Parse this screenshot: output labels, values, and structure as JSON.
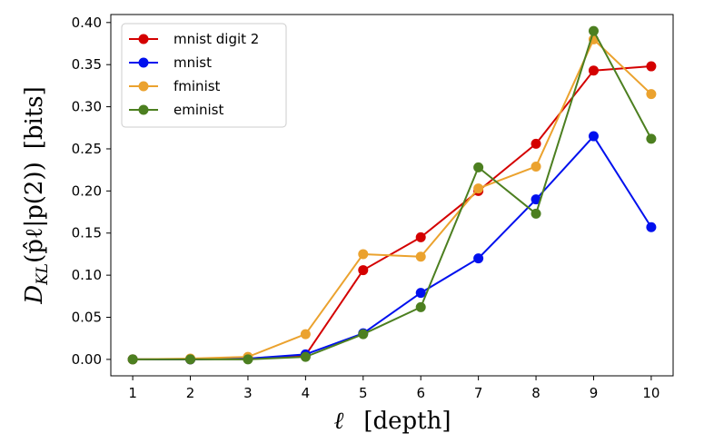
{
  "chart_data": {
    "type": "line",
    "title": "",
    "x": [
      1,
      2,
      3,
      4,
      5,
      6,
      7,
      8,
      9,
      10
    ],
    "xlim": [
      0.62,
      10.38
    ],
    "ylim": [
      -0.0195,
      0.4095
    ],
    "xticks": [
      "1",
      "2",
      "3",
      "4",
      "5",
      "6",
      "7",
      "8",
      "9",
      "10"
    ],
    "yticks": [
      "0.00",
      "0.05",
      "0.10",
      "0.15",
      "0.20",
      "0.25",
      "0.30",
      "0.35",
      "0.40"
    ],
    "ytick_values": [
      0.0,
      0.05,
      0.1,
      0.15,
      0.2,
      0.25,
      0.3,
      0.35,
      0.4
    ],
    "xlabel": {
      "symbol": "ℓ",
      "unit": "[depth]"
    },
    "ylabel": {
      "prefix": "D",
      "sub": "KL",
      "expr": "(p̂ℓ|p(2))",
      "unit": "[bits]"
    },
    "legend_position": "top-left",
    "series": [
      {
        "name": "mnist digit 2",
        "color": "#d40000",
        "values": [
          0.0,
          0.0,
          0.001,
          0.005,
          0.106,
          0.145,
          0.2,
          0.256,
          0.343,
          0.348
        ]
      },
      {
        "name": "mnist",
        "color": "#0010ee",
        "values": [
          0.0,
          0.0,
          0.001,
          0.006,
          0.031,
          0.079,
          0.12,
          0.19,
          0.265,
          0.157
        ]
      },
      {
        "name": "fminist",
        "color": "#eba22e",
        "values": [
          0.0,
          0.001,
          0.003,
          0.03,
          0.125,
          0.122,
          0.203,
          0.229,
          0.38,
          0.315
        ]
      },
      {
        "name": "eminist",
        "color": "#4c7f20",
        "values": [
          0.0,
          0.0,
          0.0,
          0.003,
          0.03,
          0.062,
          0.228,
          0.173,
          0.39,
          0.262
        ]
      }
    ]
  }
}
